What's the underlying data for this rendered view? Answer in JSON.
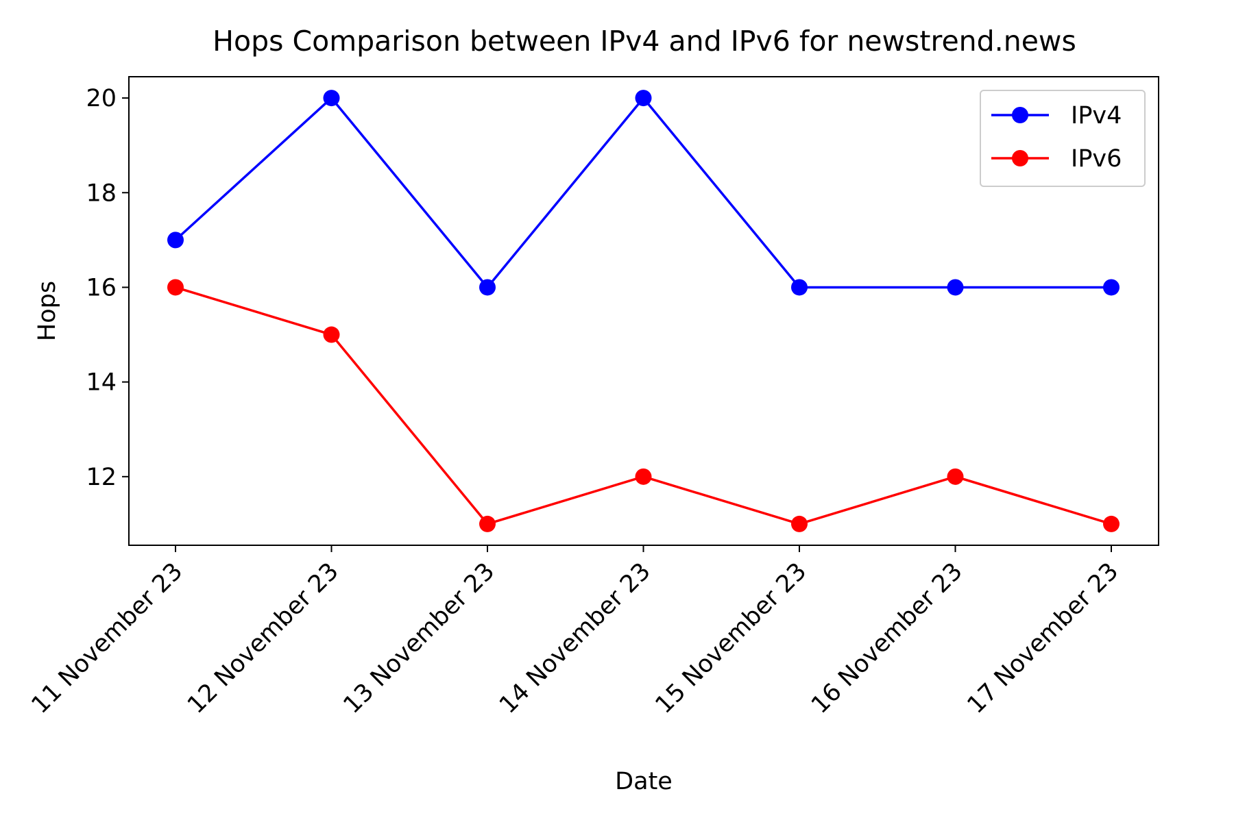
{
  "chart_data": {
    "type": "line",
    "title": "Hops Comparison between IPv4 and IPv6 for newstrend.news",
    "xlabel": "Date",
    "ylabel": "Hops",
    "categories": [
      "11 November 23",
      "12 November 23",
      "13 November 23",
      "14 November 23",
      "15 November 23",
      "16 November 23",
      "17 November 23"
    ],
    "ylim": [
      10.55,
      20.45
    ],
    "yticks": [
      12,
      14,
      16,
      18,
      20
    ],
    "grid": false,
    "legend_position": "top-right",
    "series": [
      {
        "name": "IPv4",
        "color": "#0000ff",
        "marker": "circle",
        "values": [
          17,
          20,
          16,
          20,
          16,
          16,
          16
        ]
      },
      {
        "name": "IPv6",
        "color": "#ff0000",
        "marker": "circle",
        "values": [
          16,
          15,
          11,
          12,
          11,
          12,
          11
        ]
      }
    ]
  }
}
